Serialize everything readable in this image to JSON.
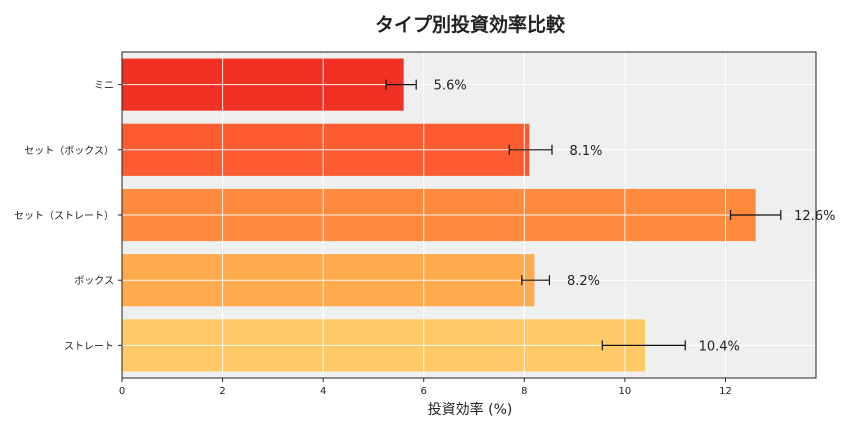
{
  "chart_data": {
    "type": "bar",
    "orientation": "horizontal",
    "title": "タイプ別投資効率比較",
    "xlabel": "投資効率 (%)",
    "ylabel": "",
    "xlim": [
      0,
      13.8
    ],
    "xticks": [
      0,
      2,
      4,
      6,
      8,
      10,
      12
    ],
    "grid": true,
    "legend": "none",
    "categories": [
      "ミニ",
      "セット（ボックス）",
      "セット（ストレート）",
      "ボックス",
      "ストレート"
    ],
    "values": [
      5.6,
      8.1,
      12.6,
      8.2,
      10.4
    ],
    "error_low": [
      5.25,
      7.7,
      12.1,
      7.95,
      9.55
    ],
    "error_high": [
      5.85,
      8.55,
      13.1,
      8.5,
      11.2
    ],
    "data_labels": [
      "5.6%",
      "8.1%",
      "12.6%",
      "8.2%",
      "10.4%"
    ],
    "colors": [
      "#f03123",
      "#fd5c30",
      "#fe8a3e",
      "#feaa4d",
      "#fec966"
    ],
    "plot_background": "#efefef"
  }
}
